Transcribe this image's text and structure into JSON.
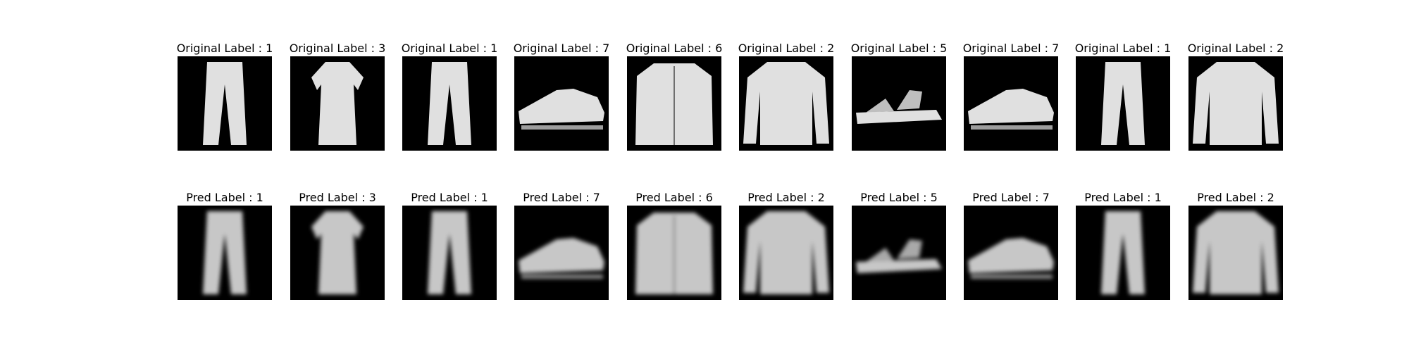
{
  "figure": {
    "rows": [
      {
        "prefix": "Original Label : ",
        "kind": "original",
        "items": [
          {
            "label": "Original Label : 1",
            "item": "trouser"
          },
          {
            "label": "Original Label : 3",
            "item": "dress"
          },
          {
            "label": "Original Label : 1",
            "item": "trouser"
          },
          {
            "label": "Original Label : 7",
            "item": "sneaker"
          },
          {
            "label": "Original Label : 6",
            "item": "shirt"
          },
          {
            "label": "Original Label : 2",
            "item": "pullover"
          },
          {
            "label": "Original Label : 5",
            "item": "sandal"
          },
          {
            "label": "Original Label : 7",
            "item": "sneaker"
          },
          {
            "label": "Original Label : 1",
            "item": "trouser"
          },
          {
            "label": "Original Label : 2",
            "item": "pullover"
          }
        ]
      },
      {
        "prefix": "Pred Label : ",
        "kind": "pred",
        "items": [
          {
            "label": "Pred Label : 1",
            "item": "trouser"
          },
          {
            "label": "Pred Label : 3",
            "item": "dress"
          },
          {
            "label": "Pred Label : 1",
            "item": "trouser"
          },
          {
            "label": "Pred Label : 7",
            "item": "sneaker"
          },
          {
            "label": "Pred Label : 6",
            "item": "shirt"
          },
          {
            "label": "Pred Label : 2",
            "item": "pullover"
          },
          {
            "label": "Pred Label : 5",
            "item": "sandal"
          },
          {
            "label": "Pred Label : 7",
            "item": "sneaker"
          },
          {
            "label": "Pred Label : 1",
            "item": "trouser"
          },
          {
            "label": "Pred Label : 2",
            "item": "pullover"
          }
        ]
      }
    ]
  }
}
